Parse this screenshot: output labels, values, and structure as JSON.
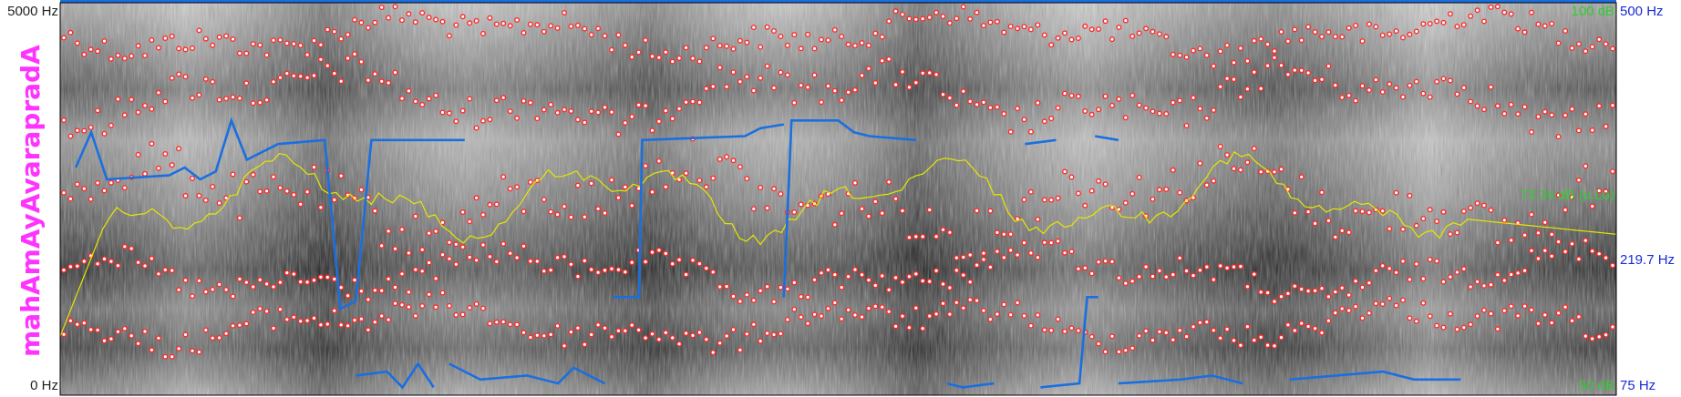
{
  "window": {
    "title": "mahAmAyAvarapradA"
  },
  "left_axis": {
    "top_label": "5000 Hz",
    "bottom_label": "0 Hz"
  },
  "right_axis": {
    "top_label": "500 Hz",
    "middle_label": "219.7 Hz",
    "bottom_label": "75 Hz"
  },
  "intensity_axis": {
    "top_label": "100 dB",
    "middle_label": "73.34 dB (u.Lo)",
    "bottom_label": "50 dB"
  },
  "transcript_label": "mahAmAyAvarapradA",
  "colors": {
    "spectrogram_dark": "#111111",
    "spectrogram_light": "#e8e8e8",
    "pitch": "#1a6fe0",
    "intensity": "#e6e600",
    "formant": "#ff2a2a",
    "left_axis_text": "#222222",
    "right_axis_text": "#1a2bd6",
    "intensity_text": "#33cc33",
    "transcript_text": "#ff33ff",
    "frame": "#000000",
    "top_bar": "#1a6fe0"
  },
  "icons": [
    "spectrogram-icon"
  ]
}
